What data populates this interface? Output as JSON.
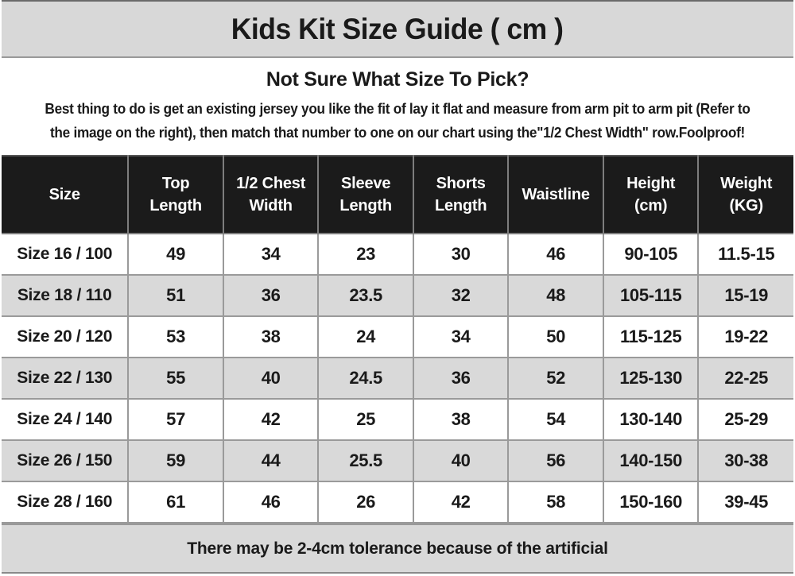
{
  "title": "Kids Kit Size Guide ( cm )",
  "intro": {
    "heading": "Not Sure What Size To Pick?",
    "body": "Best thing to do is get an existing jersey you like the fit of lay it flat and measure from arm pit to arm pit (Refer to\nthe image on the right), then match that number to one on our chart using the\"1/2 Chest Width\" row.Foolproof!"
  },
  "table_display": {
    "header_lines": [
      "Size",
      "Top\nLength",
      "1/2 Chest\nWidth",
      "Sleeve\nLength",
      "Shorts\nLength",
      "Waistline",
      "Height\n(cm)",
      "Weight\n(KG)"
    ]
  },
  "chart_data": {
    "type": "table",
    "title": "Kids Kit Size Guide ( cm )",
    "columns": [
      "Size",
      "Top Length",
      "1/2 Chest Width",
      "Sleeve Length",
      "Shorts Length",
      "Waistline",
      "Height (cm)",
      "Weight (KG)"
    ],
    "rows": [
      [
        "Size 16 / 100",
        "49",
        "34",
        "23",
        "30",
        "46",
        "90-105",
        "11.5-15"
      ],
      [
        "Size 18 / 110",
        "51",
        "36",
        "23.5",
        "32",
        "48",
        "105-115",
        "15-19"
      ],
      [
        "Size 20 / 120",
        "53",
        "38",
        "24",
        "34",
        "50",
        "115-125",
        "19-22"
      ],
      [
        "Size 22 / 130",
        "55",
        "40",
        "24.5",
        "36",
        "52",
        "125-130",
        "22-25"
      ],
      [
        "Size 24 / 140",
        "57",
        "42",
        "25",
        "38",
        "54",
        "130-140",
        "25-29"
      ],
      [
        "Size 26 / 150",
        "59",
        "44",
        "25.5",
        "40",
        "56",
        "140-150",
        "30-38"
      ],
      [
        "Size 28 / 160",
        "61",
        "46",
        "26",
        "42",
        "58",
        "150-160",
        "39-45"
      ]
    ],
    "layout": {
      "row_alternating_colors": [
        "#ffffff",
        "#d9d9d9"
      ],
      "header_bg": "#1b1b1b",
      "header_text_color": "#ffffff",
      "grid_line_color": "#9a9a9a",
      "band_bg": "#d8d8d8"
    }
  },
  "footer": {
    "note": "There may be 2-4cm tolerance because of the artificial"
  }
}
